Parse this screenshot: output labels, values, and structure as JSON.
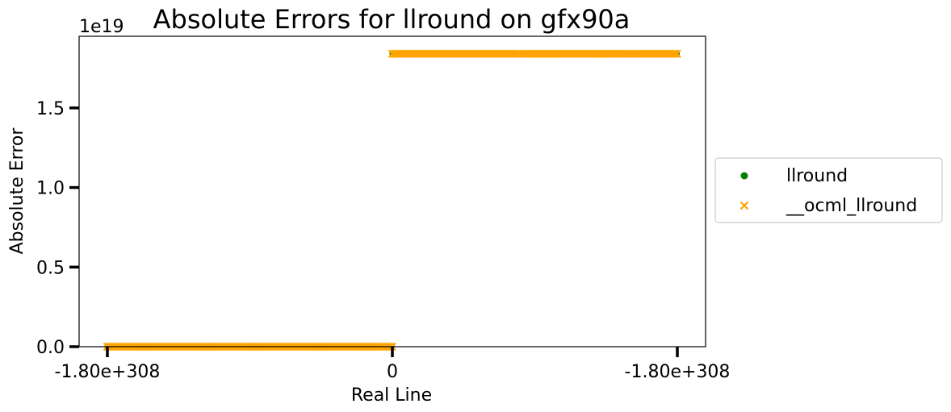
{
  "chart_data": {
    "type": "scatter",
    "title": "Absolute Errors for llround on gfx90a",
    "xlabel": "Real Line",
    "ylabel": "Absolute Error",
    "y_offset_label": "1e19",
    "x_scale": "symmetric",
    "xlim": [
      -1,
      1
    ],
    "ylim": [
      0,
      1.95
    ],
    "x_ticks": [
      {
        "value": -1,
        "label": "-1.80e+308"
      },
      {
        "value": 0,
        "label": "0"
      },
      {
        "value": 1,
        "label": "-1.80e+308"
      }
    ],
    "y_ticks": [
      {
        "value": 0.0,
        "label": "0.0"
      },
      {
        "value": 0.5,
        "label": "0.5"
      },
      {
        "value": 1.0,
        "label": "1.0"
      },
      {
        "value": 1.5,
        "label": "1.5"
      }
    ],
    "grid": false,
    "legend_position": "outside-right",
    "series": [
      {
        "name": "llround",
        "marker": "circle",
        "color": "#008000",
        "segments": [
          {
            "x_range": [
              -1,
              0.0
            ],
            "y": 0.0
          },
          {
            "x_range": [
              0.0,
              1
            ],
            "y": 1.84
          }
        ]
      },
      {
        "name": "__ocml_llround",
        "marker": "x",
        "color": "#FFA500",
        "segments": [
          {
            "x_range": [
              -1,
              0.0
            ],
            "y": 0.0
          },
          {
            "x_range": [
              0.0,
              1
            ],
            "y": 1.84
          }
        ]
      }
    ]
  }
}
